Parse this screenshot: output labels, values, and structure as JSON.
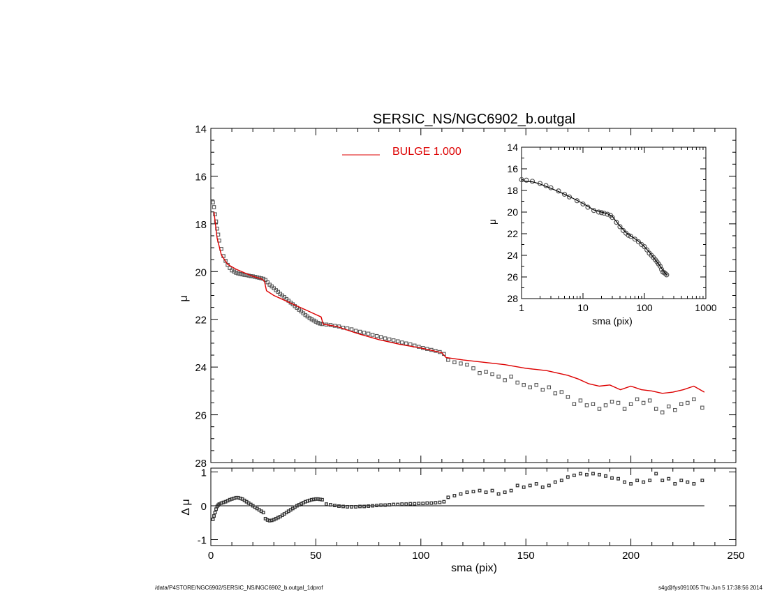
{
  "chart_data": [
    {
      "id": "main",
      "type": "line",
      "title": "SERSIC_NS/NGC6902_b.outgal",
      "xlabel": "",
      "ylabel": "μ",
      "xlim": [
        0,
        250
      ],
      "ylim": [
        28,
        14
      ],
      "y_inverted": true,
      "yticks": [
        14,
        16,
        18,
        20,
        22,
        24,
        26,
        28
      ],
      "xticks": [
        0,
        50,
        100,
        150,
        200,
        250
      ],
      "legend": {
        "label": "BULGE  1.000",
        "placement": "top-center",
        "color": "#dd0000"
      },
      "series": [
        {
          "name": "BULGE  1.000",
          "style": "line",
          "color": "#dd0000",
          "x": [
            1.5,
            3,
            5,
            8,
            12,
            16,
            20,
            24,
            25.5,
            26.5,
            30,
            35,
            40,
            45,
            50,
            52.5,
            53.5,
            60,
            70,
            80,
            90,
            100,
            105,
            110,
            112,
            120,
            130,
            140,
            150,
            155,
            160,
            170,
            175,
            180,
            185,
            190,
            195,
            200,
            205,
            210,
            215,
            220,
            225,
            230,
            235
          ],
          "y": [
            17.5,
            18.6,
            19.3,
            19.7,
            19.9,
            20.05,
            20.2,
            20.3,
            20.4,
            20.8,
            21.0,
            21.2,
            21.4,
            21.6,
            21.8,
            21.9,
            22.2,
            22.3,
            22.6,
            22.85,
            23.05,
            23.2,
            23.3,
            23.4,
            23.6,
            23.7,
            23.8,
            23.9,
            24.05,
            24.1,
            24.15,
            24.35,
            24.5,
            24.7,
            24.8,
            24.75,
            24.95,
            24.8,
            24.95,
            25.0,
            25.1,
            25.05,
            24.95,
            24.8,
            25.05
          ]
        },
        {
          "name": "",
          "style": "markers",
          "color": "#555555",
          "x": [
            1,
            1.5,
            2,
            2.5,
            3,
            3.5,
            4,
            5,
            6,
            7,
            8,
            9,
            10,
            11,
            12,
            13,
            14,
            15,
            16,
            17,
            18,
            19,
            20,
            21,
            22,
            23,
            24,
            25,
            26,
            27,
            28,
            29,
            30,
            31,
            32,
            33,
            34,
            35,
            36,
            37,
            38,
            39,
            40,
            41,
            42,
            43,
            44,
            45,
            46,
            47,
            48,
            49,
            50,
            51,
            52,
            53,
            55,
            57,
            59,
            61,
            63,
            65,
            67,
            69,
            71,
            73,
            75,
            77,
            79,
            81,
            83,
            85,
            87,
            89,
            91,
            93,
            95,
            97,
            99,
            101,
            103,
            105,
            107,
            109,
            111,
            113,
            116,
            119,
            122,
            125,
            128,
            131,
            134,
            137,
            140,
            143,
            146,
            149,
            152,
            155,
            158,
            161,
            164,
            167,
            170,
            173,
            176,
            179,
            182,
            185,
            188,
            191,
            194,
            197,
            200,
            203,
            206,
            209,
            212,
            215,
            218,
            221,
            224,
            227,
            230,
            234
          ],
          "y": [
            17.1,
            17.3,
            17.6,
            17.9,
            18.2,
            18.45,
            18.7,
            19.05,
            19.35,
            19.55,
            19.72,
            19.85,
            19.95,
            20.0,
            20.05,
            20.08,
            20.1,
            20.12,
            20.14,
            20.15,
            20.17,
            20.19,
            20.2,
            20.22,
            20.24,
            20.26,
            20.28,
            20.3,
            20.35,
            20.45,
            20.55,
            20.62,
            20.7,
            20.78,
            20.85,
            20.93,
            21.0,
            21.07,
            21.15,
            21.22,
            21.3,
            21.37,
            21.45,
            21.52,
            21.6,
            21.67,
            21.75,
            21.82,
            21.88,
            21.95,
            22.0,
            22.05,
            22.1,
            22.15,
            22.18,
            22.2,
            22.22,
            22.24,
            22.27,
            22.3,
            22.35,
            22.38,
            22.42,
            22.48,
            22.52,
            22.56,
            22.6,
            22.65,
            22.7,
            22.74,
            22.8,
            22.84,
            22.88,
            22.92,
            22.97,
            23.01,
            23.05,
            23.1,
            23.15,
            23.2,
            23.24,
            23.28,
            23.32,
            23.37,
            23.45,
            23.7,
            23.8,
            23.85,
            23.9,
            24.05,
            24.25,
            24.2,
            24.3,
            24.4,
            24.55,
            24.4,
            24.65,
            24.75,
            24.85,
            24.75,
            24.95,
            24.85,
            25.1,
            25.05,
            25.25,
            25.55,
            25.4,
            25.6,
            25.55,
            25.75,
            25.6,
            25.45,
            25.5,
            25.75,
            25.55,
            25.35,
            25.5,
            25.4,
            25.75,
            25.9,
            25.65,
            25.8,
            25.55,
            25.5,
            25.35,
            25.7
          ]
        }
      ]
    },
    {
      "id": "inset",
      "type": "line",
      "title": "",
      "xlabel": "sma (pix)",
      "ylabel": "μ",
      "xscale": "log",
      "xlim": [
        1,
        1000
      ],
      "ylim": [
        28,
        14
      ],
      "y_inverted": true,
      "xticks": [
        1,
        10,
        100,
        1000
      ],
      "xtick_labels": [
        "1",
        "10",
        "100",
        "1000"
      ],
      "yticks": [
        14,
        16,
        18,
        20,
        22,
        24,
        26,
        28
      ],
      "series": [
        {
          "name": "",
          "style": "markers",
          "color": "#555555",
          "x": [
            1,
            1.2,
            1.5,
            2,
            2.5,
            3,
            4,
            5,
            6,
            8,
            10,
            12,
            15,
            18,
            20,
            22,
            25,
            28,
            30,
            35,
            40,
            45,
            50,
            55,
            60,
            70,
            80,
            90,
            100,
            110,
            120,
            130,
            140,
            150,
            160,
            170,
            180,
            190,
            200,
            210,
            220,
            230
          ],
          "y": [
            17.0,
            17.05,
            17.15,
            17.35,
            17.55,
            17.75,
            18.05,
            18.35,
            18.6,
            18.95,
            19.25,
            19.55,
            19.85,
            20.0,
            20.05,
            20.1,
            20.2,
            20.3,
            20.5,
            20.95,
            21.35,
            21.7,
            21.95,
            22.15,
            22.25,
            22.5,
            22.75,
            23.0,
            23.2,
            23.5,
            23.8,
            24.0,
            24.2,
            24.4,
            24.6,
            24.8,
            25.0,
            25.3,
            25.55,
            25.6,
            25.7,
            25.8
          ]
        },
        {
          "name": "",
          "style": "line",
          "color": "#000000",
          "x": [
            1,
            1.5,
            2,
            3,
            4,
            5,
            7,
            10,
            15,
            20,
            25,
            30,
            40,
            50,
            60,
            80,
            100,
            120,
            150,
            180,
            200,
            230
          ],
          "y": [
            17.1,
            17.2,
            17.4,
            17.8,
            18.1,
            18.35,
            18.75,
            19.2,
            19.8,
            20.0,
            20.15,
            20.4,
            21.3,
            21.9,
            22.2,
            22.7,
            23.2,
            23.7,
            24.4,
            25.0,
            25.4,
            25.8
          ]
        }
      ]
    },
    {
      "id": "residual",
      "type": "scatter",
      "title": "",
      "xlabel": "sma (pix)",
      "ylabel": "Δ μ",
      "xlim": [
        0,
        250
      ],
      "ylim": [
        -1,
        1
      ],
      "xticks": [
        0,
        50,
        100,
        150,
        200,
        250
      ],
      "yticks": [
        -1,
        0,
        1
      ],
      "zero_line": {
        "x0": 0,
        "x1": 235
      },
      "series": [
        {
          "name": "",
          "style": "markers",
          "color": "#333333",
          "x": [
            1,
            1.5,
            2,
            2.5,
            3,
            3.5,
            4,
            5,
            6,
            7,
            8,
            9,
            10,
            11,
            12,
            13,
            14,
            15,
            16,
            17,
            18,
            19,
            20,
            21,
            22,
            23,
            24,
            25,
            26,
            27,
            28,
            29,
            30,
            31,
            32,
            33,
            34,
            35,
            36,
            37,
            38,
            39,
            40,
            41,
            42,
            43,
            44,
            45,
            46,
            47,
            48,
            49,
            50,
            51,
            52,
            53,
            55,
            57,
            59,
            61,
            63,
            65,
            67,
            69,
            71,
            73,
            75,
            77,
            79,
            81,
            83,
            85,
            87,
            89,
            91,
            93,
            95,
            97,
            99,
            101,
            103,
            105,
            107,
            109,
            111,
            113,
            116,
            119,
            122,
            125,
            128,
            131,
            134,
            137,
            140,
            143,
            146,
            149,
            152,
            155,
            158,
            161,
            164,
            167,
            170,
            173,
            176,
            179,
            182,
            185,
            188,
            191,
            194,
            197,
            200,
            203,
            206,
            209,
            212,
            215,
            218,
            221,
            224,
            227,
            230,
            234
          ],
          "y": [
            -0.4,
            -0.3,
            -0.2,
            -0.1,
            -0.02,
            0.02,
            0.05,
            0.08,
            0.1,
            0.12,
            0.15,
            0.18,
            0.2,
            0.22,
            0.24,
            0.24,
            0.22,
            0.2,
            0.16,
            0.12,
            0.08,
            0.04,
            0.0,
            -0.04,
            -0.08,
            -0.12,
            -0.16,
            -0.2,
            -0.38,
            -0.42,
            -0.44,
            -0.43,
            -0.41,
            -0.38,
            -0.35,
            -0.32,
            -0.28,
            -0.24,
            -0.2,
            -0.16,
            -0.12,
            -0.08,
            -0.04,
            0.0,
            0.03,
            0.06,
            0.09,
            0.12,
            0.14,
            0.16,
            0.18,
            0.19,
            0.2,
            0.2,
            0.19,
            0.18,
            0.05,
            0.03,
            0.01,
            -0.01,
            -0.02,
            -0.03,
            -0.03,
            -0.03,
            -0.02,
            -0.02,
            -0.01,
            0.0,
            0.01,
            0.02,
            0.02,
            0.03,
            0.04,
            0.04,
            0.05,
            0.05,
            0.06,
            0.06,
            0.07,
            0.07,
            0.08,
            0.08,
            0.09,
            0.1,
            0.12,
            0.25,
            0.3,
            0.35,
            0.4,
            0.42,
            0.45,
            0.4,
            0.45,
            0.35,
            0.4,
            0.45,
            0.6,
            0.55,
            0.6,
            0.65,
            0.55,
            0.6,
            0.7,
            0.75,
            0.85,
            0.9,
            0.95,
            0.92,
            0.95,
            0.92,
            0.88,
            0.82,
            0.8,
            0.7,
            0.65,
            0.75,
            0.7,
            0.75,
            0.95,
            0.75,
            0.8,
            0.65,
            0.75,
            0.7,
            0.65,
            0.75
          ]
        }
      ]
    }
  ],
  "footer": {
    "left": "/data/P4STORE/NGC6902/SERSIC_NS/NGC6902_b.outgal_1dprof",
    "right": "s4g@fys091005  Thu Jun  5 17:38:56 2014"
  }
}
